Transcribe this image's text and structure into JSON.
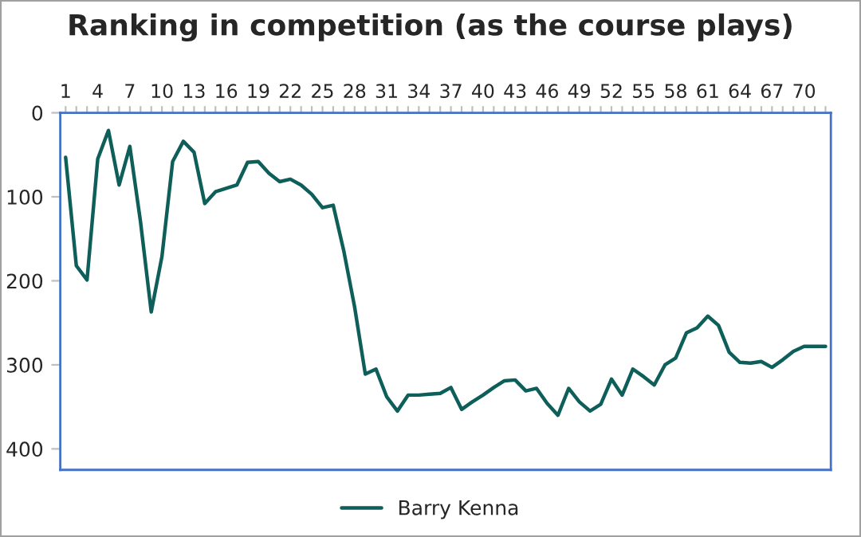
{
  "chart_data": {
    "type": "line",
    "title": "Ranking in competition (as the course plays)",
    "categories": [
      "1",
      null,
      null,
      "4",
      null,
      null,
      "7",
      null,
      null,
      "10",
      null,
      null,
      "13",
      null,
      null,
      "16",
      null,
      null,
      "19",
      null,
      null,
      "22",
      null,
      null,
      "25",
      null,
      null,
      "28",
      null,
      null,
      "31",
      null,
      null,
      "34",
      null,
      null,
      "37",
      null,
      null,
      "40",
      null,
      null,
      "43",
      null,
      null,
      "46",
      null,
      null,
      "49",
      null,
      null,
      "52",
      null,
      null,
      "55",
      null,
      null,
      "58",
      null,
      null,
      "61",
      null,
      null,
      "64",
      null,
      null,
      "67",
      null,
      null,
      "70",
      null,
      null
    ],
    "series": [
      {
        "name": "Barry Kenna",
        "color": "#0e5f5a",
        "values": [
          53,
          182,
          199,
          55,
          21,
          86,
          40,
          130,
          237,
          171,
          58,
          34,
          47,
          108,
          94,
          90,
          86,
          59,
          58,
          72,
          82,
          79,
          86,
          97,
          113,
          110,
          165,
          231,
          311,
          305,
          338,
          355,
          336,
          336,
          335,
          334,
          327,
          353,
          344,
          336,
          327,
          319,
          318,
          331,
          328,
          346,
          360,
          328,
          344,
          355,
          347,
          317,
          336,
          305,
          314,
          324,
          300,
          292,
          262,
          256,
          242,
          253,
          285,
          297,
          298,
          296,
          303,
          294,
          284,
          278,
          278,
          278
        ]
      }
    ],
    "ylim": [
      425,
      0
    ],
    "yticks": [
      0,
      100,
      200,
      300,
      400
    ],
    "grid": false,
    "legend": "bottom",
    "marker": "none",
    "line_style": "solid"
  }
}
